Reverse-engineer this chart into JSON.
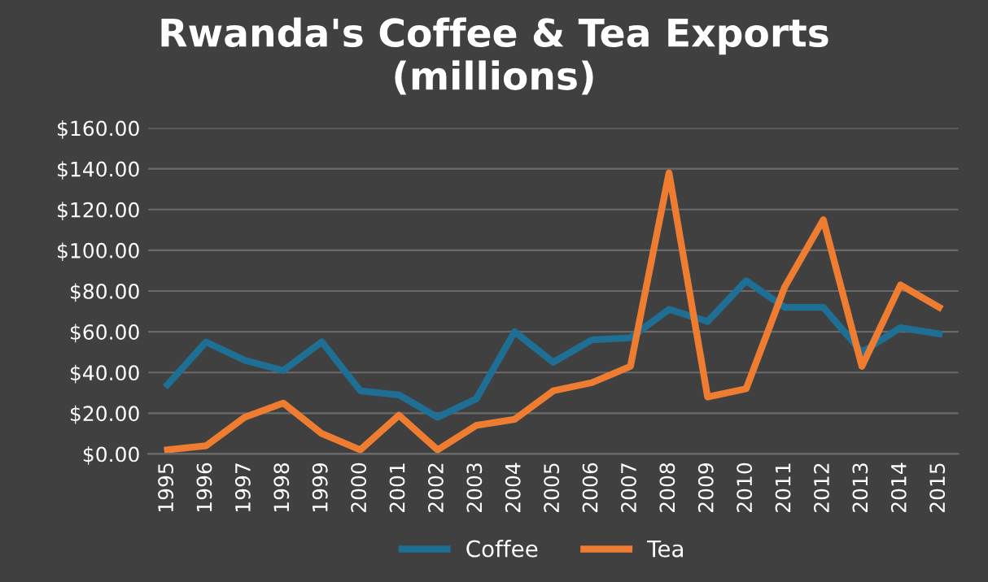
{
  "chart_data": {
    "type": "line",
    "title": "Rwanda's Coffee & Tea Exports\n(millions)",
    "categories": [
      "1995",
      "1996",
      "1997",
      "1998",
      "1999",
      "2000",
      "2001",
      "2002",
      "2003",
      "2004",
      "2005",
      "2006",
      "2007",
      "2008",
      "2009",
      "2010",
      "2011",
      "2012",
      "2013",
      "2014",
      "2015"
    ],
    "series": [
      {
        "name": "Coffee",
        "color": "#1f6e94",
        "values": [
          34,
          55,
          46,
          41,
          55,
          31,
          29,
          18,
          27,
          60,
          45,
          56,
          57,
          71,
          65,
          85,
          72,
          72,
          50,
          62,
          59
        ]
      },
      {
        "name": "Tea",
        "color": "#ef7d31",
        "values": [
          2,
          4,
          18,
          25,
          10,
          2,
          19,
          2,
          14,
          17,
          31,
          35,
          43,
          138,
          28,
          32,
          82,
          115,
          43,
          83,
          72
        ]
      }
    ],
    "ylim": [
      0,
      160
    ],
    "yticks": [
      {
        "value": 0,
        "label": "$0.00"
      },
      {
        "value": 20,
        "label": "$20.00"
      },
      {
        "value": 40,
        "label": "$40.00"
      },
      {
        "value": 60,
        "label": "$60.00"
      },
      {
        "value": 80,
        "label": "$80.00"
      },
      {
        "value": 100,
        "label": "$100.00"
      },
      {
        "value": 120,
        "label": "$120.00"
      },
      {
        "value": 140,
        "label": "$140.00"
      },
      {
        "value": 160,
        "label": "$160.00"
      }
    ],
    "grid": "y",
    "legend": "bottom",
    "marker": "none",
    "line_style": "solid"
  }
}
